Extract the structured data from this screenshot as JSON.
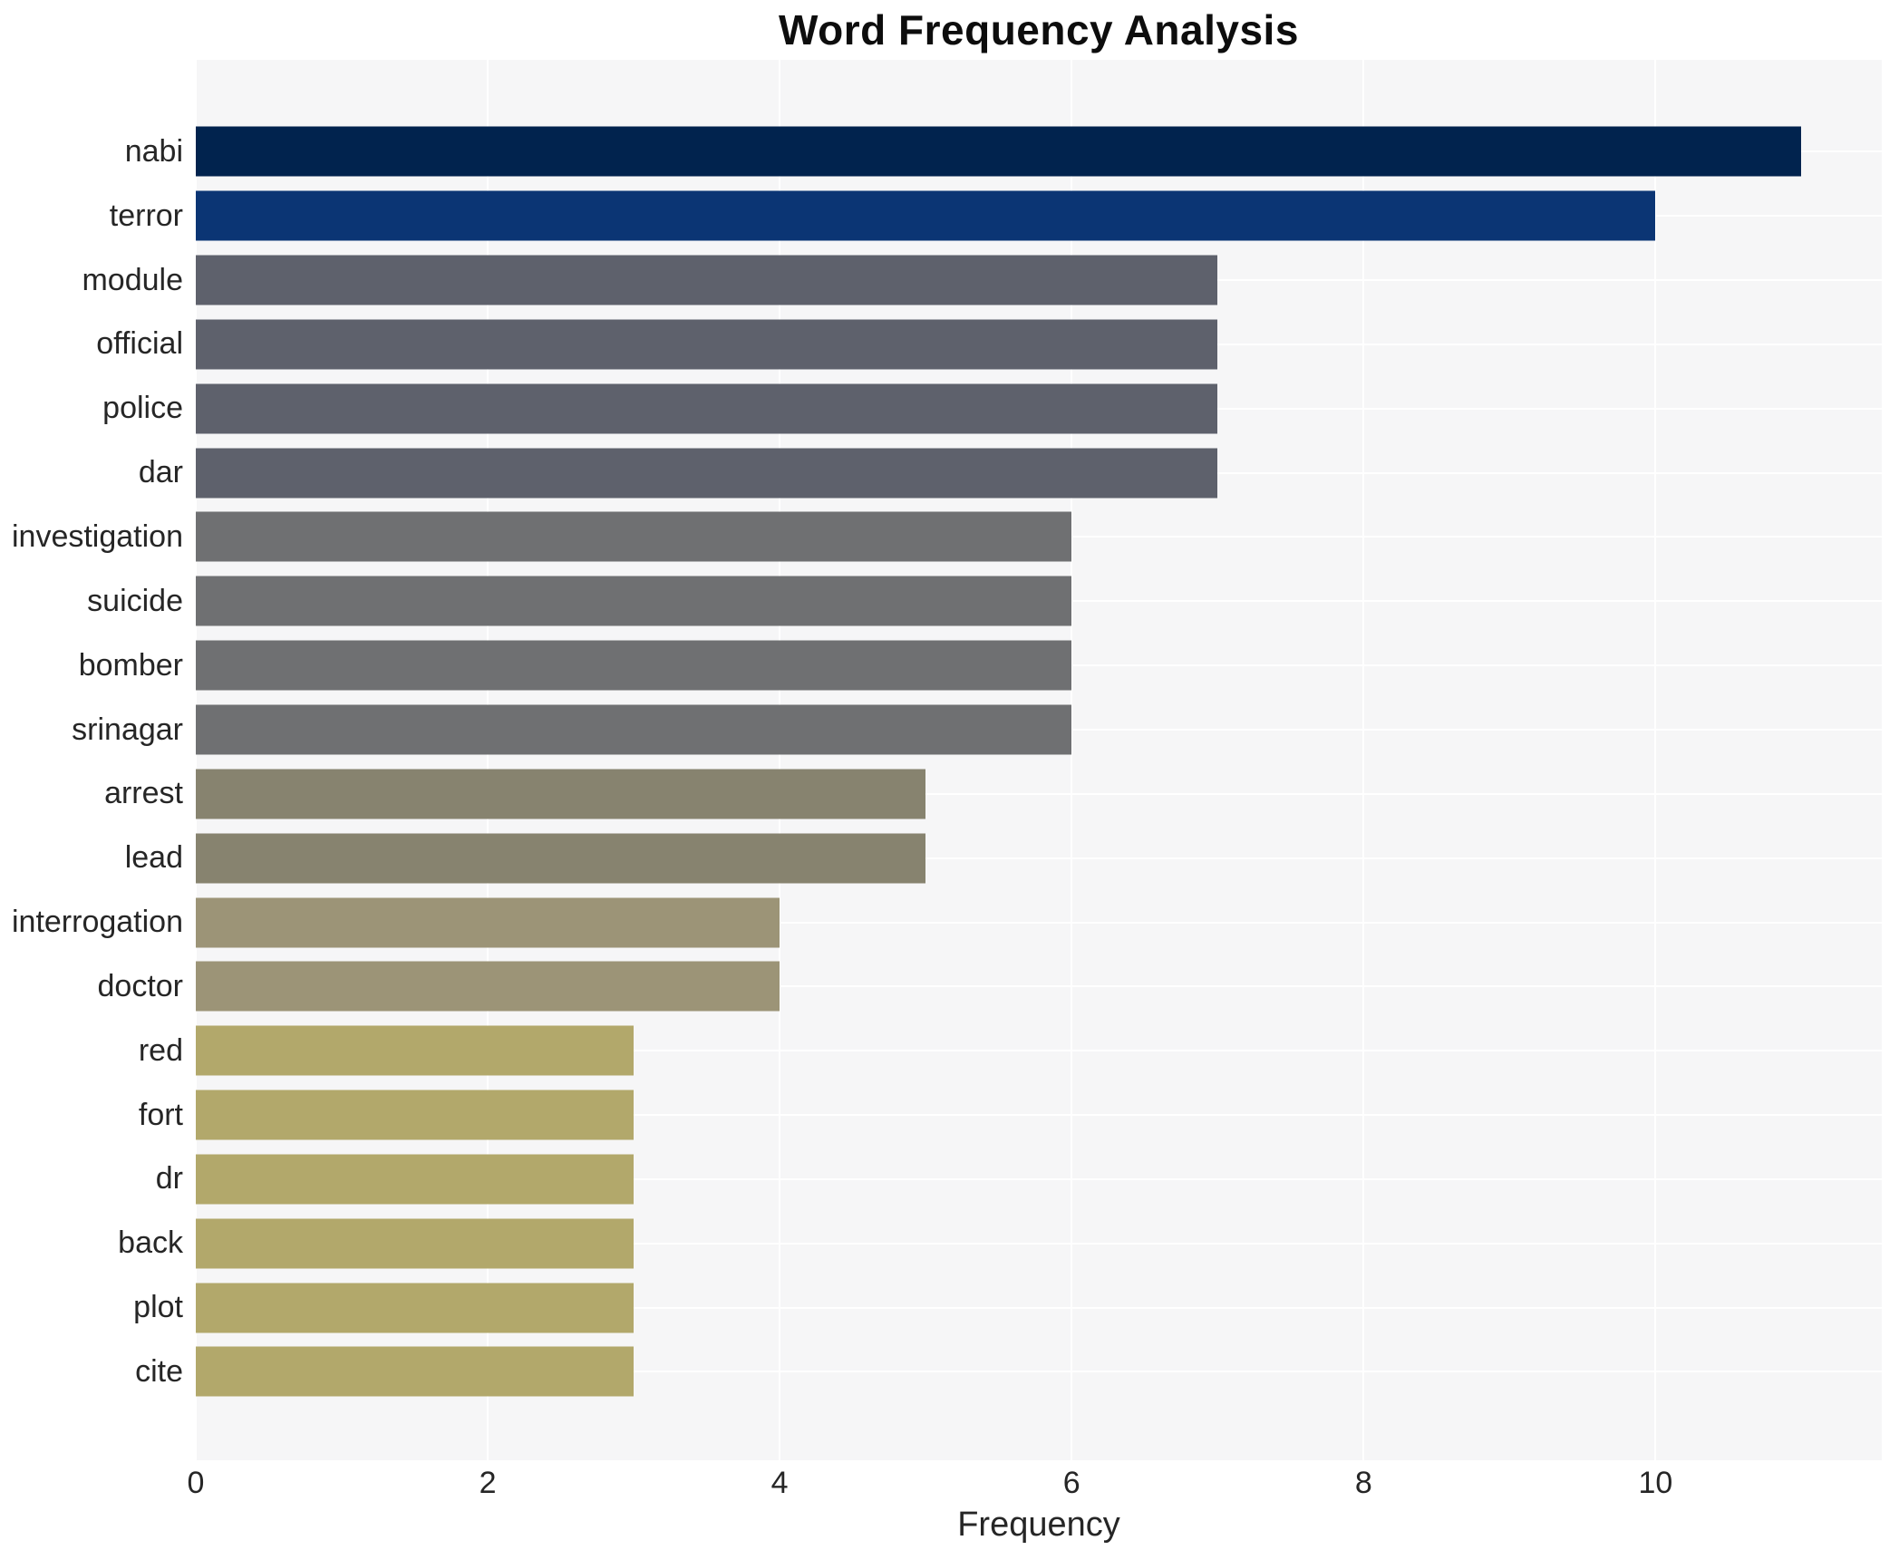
{
  "chart_data": {
    "type": "bar",
    "orientation": "horizontal",
    "title": "Word Frequency Analysis",
    "xlabel": "Frequency",
    "ylabel": "",
    "categories": [
      "nabi",
      "terror",
      "module",
      "official",
      "police",
      "dar",
      "investigation",
      "suicide",
      "bomber",
      "srinagar",
      "arrest",
      "lead",
      "interrogation",
      "doctor",
      "red",
      "fort",
      "dr",
      "back",
      "plot",
      "cite"
    ],
    "values": [
      11,
      10,
      7,
      7,
      7,
      7,
      6,
      6,
      6,
      6,
      5,
      5,
      4,
      4,
      3,
      3,
      3,
      3,
      3,
      3
    ],
    "bar_colors": [
      "#01234e",
      "#0b3574",
      "#5e616c",
      "#5e616c",
      "#5e616c",
      "#5e616c",
      "#6f7072",
      "#6f7072",
      "#6f7072",
      "#6f7072",
      "#87836f",
      "#87836f",
      "#9c9477",
      "#9c9477",
      "#b2a86b",
      "#b2a86b",
      "#b2a86b",
      "#b2a86b",
      "#b2a86b",
      "#b2a86b"
    ],
    "xticks": [
      0,
      2,
      4,
      6,
      8,
      10
    ],
    "xlim": [
      0,
      11.55
    ],
    "grid": "white gridlines on both axes",
    "legend": null,
    "plot_background": "#f6f6f7",
    "grid_color": "#ffffff",
    "text_color": "#262626",
    "title_color": "#0d0d0d"
  }
}
